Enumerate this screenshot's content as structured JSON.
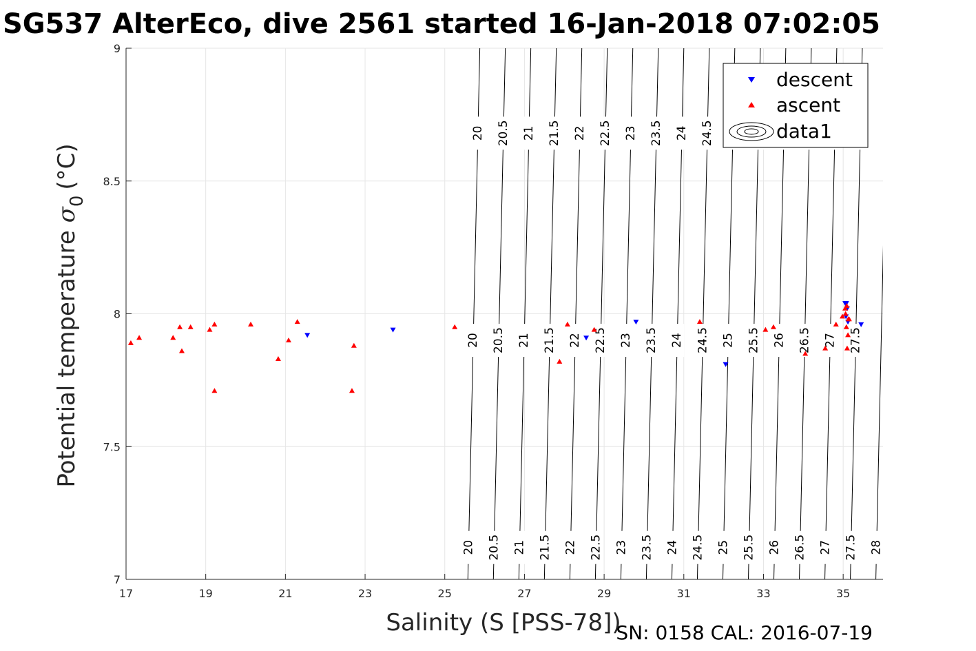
{
  "chart_data": {
    "type": "scatter",
    "title": "SG537 AlterEco, dive 2561 started 16-Jan-2018 07:02:05",
    "xlabel": "Salinity (S [PSS-78])",
    "ylabel": "Potential temperature",
    "ylabel_symbol": "σ",
    "ylabel_subscript": "0",
    "ylabel_unit": "(°C)",
    "xlim": [
      17,
      36
    ],
    "ylim": [
      7,
      9
    ],
    "xticks": [
      17,
      19,
      21,
      23,
      25,
      27,
      29,
      31,
      33,
      35
    ],
    "yticks": [
      7,
      7.5,
      8,
      8.5,
      9
    ],
    "xtick_labels": [
      "17",
      "19",
      "21",
      "23",
      "25",
      "27",
      "29",
      "31",
      "33",
      "35"
    ],
    "ytick_labels": [
      "7",
      "7.5",
      "8",
      "8.5",
      "9"
    ],
    "grid": true,
    "legend_position": "top-right",
    "colors": {
      "descent": "#0000ff",
      "ascent": "#ff0000",
      "contour": "#000000",
      "grid": "#e6e6e6",
      "axis": "#262626"
    },
    "series": [
      {
        "name": "descent",
        "marker": "triangle-down",
        "x": [
          21.55,
          23.7,
          28.55,
          29.8,
          32.05,
          35.05,
          35.45,
          35.1,
          35.07,
          35.12,
          35.08
        ],
        "y": [
          7.92,
          7.94,
          7.91,
          7.97,
          7.81,
          8.04,
          7.96,
          8.02,
          7.99,
          7.97,
          8.04
        ]
      },
      {
        "name": "ascent",
        "marker": "triangle-up",
        "x": [
          17.12,
          17.33,
          18.18,
          18.35,
          18.4,
          18.62,
          19.1,
          19.22,
          19.22,
          20.13,
          20.82,
          21.08,
          21.3,
          22.67,
          22.72,
          25.25,
          27.88,
          28.08,
          28.75,
          31.4,
          33.05,
          33.25,
          34.05,
          34.55,
          34.82,
          34.98,
          35.05,
          35.08,
          35.1,
          35.12,
          35.15,
          35.06,
          35.09,
          35.13
        ],
        "y": [
          7.89,
          7.91,
          7.91,
          7.95,
          7.86,
          7.95,
          7.94,
          7.96,
          7.71,
          7.96,
          7.83,
          7.9,
          7.97,
          7.71,
          7.88,
          7.95,
          7.82,
          7.96,
          7.94,
          7.97,
          7.94,
          7.95,
          7.85,
          7.87,
          7.96,
          7.99,
          8.02,
          7.95,
          7.87,
          7.92,
          7.98,
          8.0,
          8.03,
          7.98
        ]
      }
    ],
    "contours": {
      "name": "data1",
      "levels": [
        20,
        20.5,
        21,
        21.5,
        22,
        22.5,
        23,
        23.5,
        24,
        24.5,
        25,
        25.5,
        26,
        26.5,
        27,
        27.5,
        28
      ],
      "level_labels": [
        "20",
        "20.5",
        "21",
        "21.5",
        "22",
        "22.5",
        "23",
        "23.5",
        "24",
        "24.5",
        "25",
        "25.5",
        "26",
        "26.5",
        "27",
        "27.5",
        "28"
      ],
      "salinity_at_bottom": [
        25.58,
        26.22,
        26.86,
        27.5,
        28.14,
        28.78,
        29.42,
        30.06,
        30.7,
        31.34,
        31.98,
        32.62,
        33.26,
        33.9,
        34.54,
        35.18,
        35.82
      ],
      "salinity_at_top": [
        25.88,
        26.52,
        27.16,
        27.8,
        28.44,
        29.08,
        29.72,
        30.36,
        31.0,
        31.64,
        32.28,
        32.92,
        33.56,
        34.2,
        34.84,
        35.48,
        36.12
      ]
    },
    "footer": "SN: 0158  CAL: 2016-07-19"
  }
}
